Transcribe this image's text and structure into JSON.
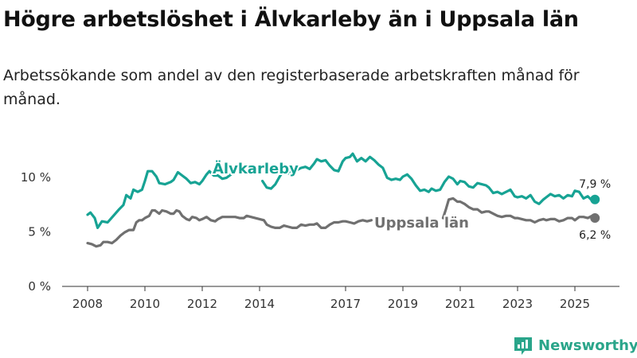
{
  "title": "Högre arbetslöshet i Älvkarleby än i Uppsala län",
  "subtitle": "Arbetssökande som andel av den registerbaserade arbetskraften månad för månad.",
  "brand": {
    "name": "Newsworthy",
    "color": "#2aa58a"
  },
  "chart_data": {
    "type": "line",
    "title": "Högre arbetslöshet i Älvkarleby än i Uppsala län",
    "xlabel": "",
    "ylabel": "",
    "xlim": [
      2007.5,
      2026.2
    ],
    "ylim": [
      0,
      10
    ],
    "yticks": [
      {
        "value": 0,
        "label": "0 %"
      },
      {
        "value": 5,
        "label": "5 %"
      },
      {
        "value": 10,
        "label": "10 %"
      }
    ],
    "xticks": [
      {
        "value": 2008,
        "label": "2008"
      },
      {
        "value": 2010,
        "label": "2010"
      },
      {
        "value": 2012,
        "label": "2012"
      },
      {
        "value": 2014,
        "label": "2014"
      },
      {
        "value": 2017,
        "label": "2017"
      },
      {
        "value": 2019,
        "label": "2019"
      },
      {
        "value": 2021,
        "label": "2021"
      },
      {
        "value": 2023,
        "label": "2023"
      },
      {
        "value": 2025,
        "label": "2025"
      }
    ],
    "grid": false,
    "series": [
      {
        "name": "Älvkarleby",
        "color": "#17a394",
        "end_label": "7,9 %",
        "segments": [
          [
            [
              2008.0,
              6.5
            ],
            [
              2008.1,
              6.7
            ],
            [
              2008.25,
              6.2
            ],
            [
              2008.35,
              5.3
            ],
            [
              2008.5,
              5.9
            ],
            [
              2008.7,
              5.8
            ],
            [
              2008.9,
              6.4
            ],
            [
              2009.1,
              7.0
            ],
            [
              2009.25,
              7.4
            ],
            [
              2009.35,
              8.3
            ],
            [
              2009.5,
              8.0
            ],
            [
              2009.6,
              8.8
            ],
            [
              2009.75,
              8.6
            ],
            [
              2009.9,
              8.8
            ],
            [
              2010.0,
              9.6
            ],
            [
              2010.1,
              10.5
            ],
            [
              2010.25,
              10.5
            ],
            [
              2010.4,
              10.0
            ],
            [
              2010.5,
              9.4
            ],
            [
              2010.7,
              9.3
            ],
            [
              2010.9,
              9.5
            ],
            [
              2011.0,
              9.7
            ],
            [
              2011.15,
              10.4
            ],
            [
              2011.3,
              10.1
            ],
            [
              2011.45,
              9.8
            ],
            [
              2011.6,
              9.4
            ],
            [
              2011.75,
              9.5
            ],
            [
              2011.9,
              9.3
            ],
            [
              2012.0,
              9.6
            ],
            [
              2012.15,
              10.2
            ],
            [
              2012.25,
              10.5
            ],
            [
              2012.4,
              10.1
            ],
            [
              2012.55,
              10.1
            ],
            [
              2012.7,
              9.8
            ],
            [
              2012.85,
              9.9
            ],
            [
              2013.0,
              10.2
            ]
          ],
          [
            [
              2014.1,
              9.6
            ],
            [
              2014.25,
              9.0
            ],
            [
              2014.4,
              8.9
            ],
            [
              2014.55,
              9.3
            ],
            [
              2014.7,
              10.0
            ],
            [
              2014.85,
              10.6
            ],
            [
              2015.0,
              10.3
            ],
            [
              2015.15,
              10.8
            ],
            [
              2015.3,
              10.6
            ],
            [
              2015.45,
              10.8
            ],
            [
              2015.6,
              10.9
            ],
            [
              2015.75,
              10.7
            ],
            [
              2015.9,
              11.2
            ],
            [
              2016.0,
              11.6
            ],
            [
              2016.15,
              11.4
            ],
            [
              2016.3,
              11.5
            ],
            [
              2016.45,
              11.0
            ],
            [
              2016.6,
              10.6
            ],
            [
              2016.75,
              10.5
            ],
            [
              2016.9,
              11.4
            ],
            [
              2017.0,
              11.7
            ],
            [
              2017.15,
              11.8
            ],
            [
              2017.25,
              12.1
            ],
            [
              2017.4,
              11.4
            ],
            [
              2017.55,
              11.7
            ],
            [
              2017.7,
              11.4
            ],
            [
              2017.85,
              11.8
            ],
            [
              2018.0,
              11.5
            ],
            [
              2018.15,
              11.1
            ],
            [
              2018.3,
              10.8
            ],
            [
              2018.45,
              9.9
            ],
            [
              2018.6,
              9.7
            ],
            [
              2018.75,
              9.8
            ],
            [
              2018.9,
              9.7
            ],
            [
              2019.0,
              10.0
            ],
            [
              2019.15,
              10.2
            ],
            [
              2019.3,
              9.8
            ],
            [
              2019.45,
              9.2
            ],
            [
              2019.6,
              8.7
            ],
            [
              2019.75,
              8.8
            ],
            [
              2019.9,
              8.6
            ],
            [
              2020.0,
              8.9
            ],
            [
              2020.15,
              8.7
            ],
            [
              2020.3,
              8.8
            ],
            [
              2020.45,
              9.5
            ],
            [
              2020.6,
              10.0
            ],
            [
              2020.75,
              9.8
            ],
            [
              2020.9,
              9.3
            ],
            [
              2021.0,
              9.6
            ],
            [
              2021.15,
              9.5
            ],
            [
              2021.3,
              9.1
            ],
            [
              2021.45,
              9.0
            ],
            [
              2021.6,
              9.4
            ],
            [
              2021.75,
              9.3
            ],
            [
              2021.9,
              9.2
            ],
            [
              2022.0,
              9.0
            ],
            [
              2022.15,
              8.5
            ],
            [
              2022.3,
              8.6
            ],
            [
              2022.45,
              8.4
            ],
            [
              2022.6,
              8.6
            ],
            [
              2022.75,
              8.8
            ],
            [
              2022.9,
              8.2
            ],
            [
              2023.0,
              8.1
            ],
            [
              2023.15,
              8.2
            ],
            [
              2023.3,
              8.0
            ],
            [
              2023.45,
              8.3
            ],
            [
              2023.6,
              7.7
            ],
            [
              2023.75,
              7.5
            ],
            [
              2023.9,
              7.9
            ],
            [
              2024.0,
              8.1
            ],
            [
              2024.15,
              8.4
            ],
            [
              2024.3,
              8.2
            ],
            [
              2024.45,
              8.3
            ],
            [
              2024.6,
              8.0
            ],
            [
              2024.75,
              8.3
            ],
            [
              2024.9,
              8.2
            ],
            [
              2025.0,
              8.7
            ],
            [
              2025.15,
              8.6
            ],
            [
              2025.3,
              8.0
            ],
            [
              2025.45,
              8.2
            ],
            [
              2025.6,
              7.8
            ],
            [
              2025.7,
              7.9
            ]
          ]
        ]
      },
      {
        "name": "Uppsala län",
        "color": "#707070",
        "end_label": "6,2 %",
        "segments": [
          [
            [
              2008.0,
              3.9
            ],
            [
              2008.15,
              3.8
            ],
            [
              2008.3,
              3.6
            ],
            [
              2008.45,
              3.7
            ],
            [
              2008.55,
              4.0
            ],
            [
              2008.7,
              4.0
            ],
            [
              2008.85,
              3.9
            ],
            [
              2009.0,
              4.2
            ],
            [
              2009.15,
              4.6
            ],
            [
              2009.3,
              4.9
            ],
            [
              2009.45,
              5.1
            ],
            [
              2009.6,
              5.1
            ],
            [
              2009.7,
              5.8
            ],
            [
              2009.8,
              6.0
            ],
            [
              2009.9,
              6.0
            ],
            [
              2010.0,
              6.2
            ],
            [
              2010.15,
              6.4
            ],
            [
              2010.25,
              6.9
            ],
            [
              2010.35,
              6.9
            ],
            [
              2010.5,
              6.6
            ],
            [
              2010.6,
              6.9
            ],
            [
              2010.75,
              6.8
            ],
            [
              2010.9,
              6.6
            ],
            [
              2011.0,
              6.6
            ],
            [
              2011.1,
              6.9
            ],
            [
              2011.2,
              6.8
            ],
            [
              2011.3,
              6.4
            ],
            [
              2011.45,
              6.1
            ],
            [
              2011.55,
              6.0
            ],
            [
              2011.65,
              6.3
            ],
            [
              2011.8,
              6.2
            ],
            [
              2011.9,
              6.0
            ],
            [
              2012.0,
              6.1
            ],
            [
              2012.15,
              6.3
            ],
            [
              2012.3,
              6.0
            ],
            [
              2012.45,
              5.9
            ],
            [
              2012.55,
              6.1
            ],
            [
              2012.7,
              6.3
            ],
            [
              2012.85,
              6.3
            ],
            [
              2013.0,
              6.3
            ],
            [
              2013.15,
              6.3
            ],
            [
              2013.3,
              6.2
            ],
            [
              2013.45,
              6.2
            ],
            [
              2013.55,
              6.4
            ],
            [
              2013.7,
              6.3
            ],
            [
              2013.85,
              6.2
            ],
            [
              2014.0,
              6.1
            ],
            [
              2014.15,
              6.0
            ],
            [
              2014.25,
              5.6
            ],
            [
              2014.4,
              5.4
            ],
            [
              2014.55,
              5.3
            ],
            [
              2014.7,
              5.3
            ],
            [
              2014.85,
              5.5
            ],
            [
              2015.0,
              5.4
            ],
            [
              2015.15,
              5.3
            ],
            [
              2015.3,
              5.3
            ],
            [
              2015.45,
              5.6
            ],
            [
              2015.6,
              5.5
            ],
            [
              2015.75,
              5.6
            ],
            [
              2015.9,
              5.6
            ],
            [
              2016.0,
              5.7
            ],
            [
              2016.15,
              5.3
            ],
            [
              2016.3,
              5.3
            ],
            [
              2016.45,
              5.6
            ],
            [
              2016.6,
              5.8
            ],
            [
              2016.75,
              5.8
            ],
            [
              2016.9,
              5.9
            ],
            [
              2017.0,
              5.9
            ],
            [
              2017.15,
              5.8
            ],
            [
              2017.3,
              5.7
            ],
            [
              2017.45,
              5.9
            ],
            [
              2017.6,
              6.0
            ],
            [
              2017.75,
              5.9
            ],
            [
              2017.9,
              6.0
            ]
          ],
          [
            [
              2020.4,
              6.2
            ],
            [
              2020.5,
              7.0
            ],
            [
              2020.6,
              7.9
            ],
            [
              2020.75,
              8.0
            ],
            [
              2020.9,
              7.7
            ],
            [
              2021.0,
              7.7
            ],
            [
              2021.15,
              7.5
            ],
            [
              2021.3,
              7.2
            ],
            [
              2021.45,
              7.0
            ],
            [
              2021.6,
              7.0
            ],
            [
              2021.75,
              6.7
            ],
            [
              2021.9,
              6.8
            ],
            [
              2022.0,
              6.8
            ],
            [
              2022.15,
              6.6
            ],
            [
              2022.3,
              6.4
            ],
            [
              2022.45,
              6.3
            ],
            [
              2022.6,
              6.4
            ],
            [
              2022.75,
              6.4
            ],
            [
              2022.9,
              6.2
            ],
            [
              2023.0,
              6.2
            ],
            [
              2023.15,
              6.1
            ],
            [
              2023.3,
              6.0
            ],
            [
              2023.45,
              6.0
            ],
            [
              2023.6,
              5.8
            ],
            [
              2023.75,
              6.0
            ],
            [
              2023.9,
              6.1
            ],
            [
              2024.0,
              6.0
            ],
            [
              2024.15,
              6.1
            ],
            [
              2024.3,
              6.1
            ],
            [
              2024.45,
              5.9
            ],
            [
              2024.6,
              6.0
            ],
            [
              2024.75,
              6.2
            ],
            [
              2024.9,
              6.2
            ],
            [
              2025.0,
              6.0
            ],
            [
              2025.15,
              6.3
            ],
            [
              2025.3,
              6.3
            ],
            [
              2025.45,
              6.2
            ],
            [
              2025.6,
              6.4
            ],
            [
              2025.7,
              6.2
            ]
          ]
        ]
      }
    ]
  }
}
